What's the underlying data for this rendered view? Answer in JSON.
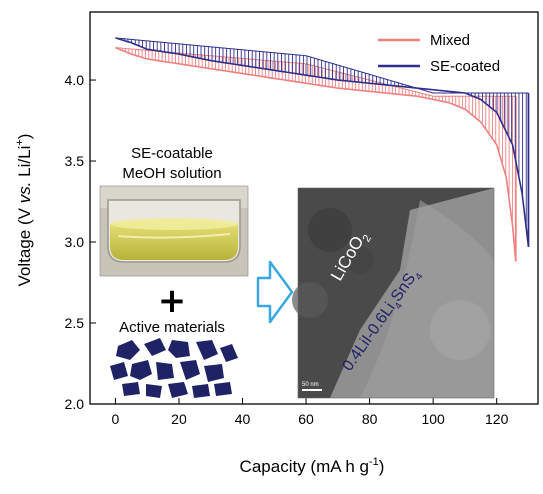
{
  "chart_data": {
    "type": "line",
    "xlabel_main": "Capacity (mA h g",
    "xlabel_sup": "-1",
    "xlabel_end": ")",
    "ylabel_main": "Voltage (V ",
    "ylabel_italic": "vs.",
    "ylabel_mid": " Li/Li",
    "ylabel_sup": "+",
    "ylabel_end": ")",
    "xlim": [
      -8,
      133
    ],
    "ylim": [
      2.0,
      4.42
    ],
    "xticks": [
      "0",
      "20",
      "40",
      "60",
      "80",
      "100",
      "120"
    ],
    "yticks": [
      "2.0",
      "2.5",
      "3.0",
      "3.5",
      "4.0"
    ],
    "series": [
      {
        "name": "Mixed",
        "color": "#f08080",
        "top_curve": [
          [
            0,
            4.2
          ],
          [
            5,
            4.16
          ],
          [
            10,
            4.13
          ],
          [
            20,
            4.1
          ],
          [
            30,
            4.07
          ],
          [
            40,
            4.04
          ],
          [
            50,
            4.01
          ],
          [
            60,
            3.98
          ],
          [
            70,
            3.95
          ],
          [
            80,
            3.93
          ],
          [
            90,
            3.91
          ],
          [
            95,
            3.9
          ],
          [
            100,
            3.88
          ],
          [
            105,
            3.86
          ],
          [
            110,
            3.82
          ],
          [
            115,
            3.74
          ],
          [
            120,
            3.6
          ],
          [
            123,
            3.4
          ],
          [
            125,
            3.1
          ],
          [
            126,
            2.88
          ]
        ],
        "relax_level": [
          [
            0,
            4.2
          ],
          [
            60,
            4.1
          ],
          [
            100,
            3.9
          ],
          [
            120,
            3.9
          ],
          [
            126,
            3.9
          ]
        ],
        "end_capacity": 126,
        "end_voltage": 2.88
      },
      {
        "name": "SE-coated",
        "color": "#2e2e8c",
        "top_curve": [
          [
            0,
            4.26
          ],
          [
            5,
            4.23
          ],
          [
            10,
            4.19
          ],
          [
            20,
            4.16
          ],
          [
            30,
            4.12
          ],
          [
            40,
            4.09
          ],
          [
            50,
            4.06
          ],
          [
            60,
            4.03
          ],
          [
            70,
            4.0
          ],
          [
            80,
            3.98
          ],
          [
            90,
            3.96
          ],
          [
            100,
            3.94
          ],
          [
            110,
            3.92
          ],
          [
            115,
            3.88
          ],
          [
            120,
            3.8
          ],
          [
            125,
            3.6
          ],
          [
            128,
            3.3
          ],
          [
            130,
            2.97
          ]
        ],
        "relax_level": [
          [
            0,
            4.26
          ],
          [
            60,
            4.15
          ],
          [
            100,
            3.92
          ],
          [
            130,
            3.92
          ]
        ],
        "end_capacity": 130,
        "end_voltage": 2.97
      }
    ],
    "legend_position": "top-right"
  },
  "inset": {
    "solution_label_line1": "SE-coatable",
    "solution_label_line2": "MeOH solution",
    "plus_sign": "+",
    "materials_label": "Active materials",
    "tem_label_licoo2_main": "LiCoO",
    "tem_label_licoo2_sub": "2",
    "tem_label_coating_a": "0.4LiI-0.6Li",
    "tem_label_coating_sub1": "4",
    "tem_label_coating_b": "SnS",
    "tem_label_coating_sub2": "4",
    "scale_bar_label": "50 nm",
    "arrow_color": "#3aa8e0",
    "particle_color": "#1f2366"
  }
}
